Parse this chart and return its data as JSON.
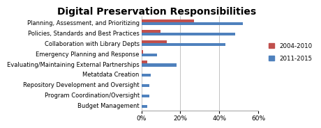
{
  "title": "Digital Preservation Responsibilities",
  "categories": [
    "Planning, Assessment, and Prioritizing",
    "Policies, Standards and Best Practices",
    "Collaboration with Library Depts",
    "Emergency Planning and Response",
    "Evaluating/Maintaining External Partnerships",
    "Metatdata Creation",
    "Repository Development and Oversight",
    "Program Coordination/Oversight",
    "Budget Management"
  ],
  "values_2004": [
    27,
    10,
    13,
    1,
    3,
    0,
    0,
    0,
    0
  ],
  "values_2011": [
    52,
    48,
    43,
    8,
    18,
    5,
    4,
    4,
    3
  ],
  "color_2004": "#c0504d",
  "color_2011": "#4f81bd",
  "legend_2004": "2004-2010",
  "legend_2011": "2011-2015",
  "xlim": [
    0,
    60
  ],
  "xticks": [
    0,
    20,
    40,
    60
  ],
  "xtick_labels": [
    "0%",
    "20%",
    "40%",
    "60%"
  ],
  "background_color": "#ffffff",
  "title_fontsize": 10,
  "label_fontsize": 6.0,
  "tick_fontsize": 6.5
}
